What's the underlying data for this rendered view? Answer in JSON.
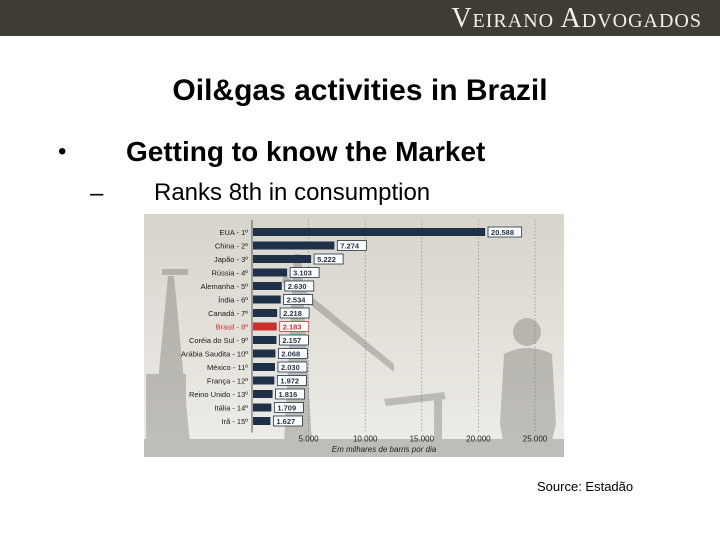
{
  "header": {
    "firm_name": "Veirano Advogados"
  },
  "slide": {
    "title": "Oil&gas activities in Brazil",
    "bullet_marker": "•",
    "bullet": "Getting to know the Market",
    "dash_marker": "–",
    "sub_bullet": "Ranks 8th in consumption",
    "source": "Source: Estadão"
  },
  "colors": {
    "bar": "#1f3148",
    "highlight": "#c8302c",
    "topbar": "#3f3c36"
  },
  "chart_data": {
    "type": "bar",
    "orientation": "horizontal",
    "categories": [
      "EUA - 1º",
      "China - 2º",
      "Japão - 3º",
      "Rússia - 4º",
      "Alemanha - 5º",
      "Índia - 6º",
      "Canadá - 7º",
      "Brasil - 8º",
      "Coréia do Sul - 9º",
      "Arábia Saudita - 10º",
      "México - 11º",
      "França - 12º",
      "Reino Unido - 13º",
      "Itália - 14º",
      "Irã - 15º"
    ],
    "values": [
      20588,
      7274,
      5222,
      3103,
      2630,
      2534,
      2218,
      2183,
      2157,
      2068,
      2030,
      1972,
      1816,
      1709,
      1627
    ],
    "value_labels": [
      "20.588",
      "7.274",
      "5.222",
      "3.103",
      "2.630",
      "2.534",
      "2.218",
      "2.183",
      "2.157",
      "2.068",
      "2.030",
      "1.972",
      "1.816",
      "1.709",
      "1.627"
    ],
    "highlight_index": 7,
    "xlim": [
      0,
      25000
    ],
    "xticks": [
      5000,
      10000,
      15000,
      20000,
      25000
    ],
    "xtick_labels": [
      "5.000",
      "10.000",
      "15.000",
      "20.000",
      "25.000"
    ],
    "xlabel": "Em milhares de barris por dia",
    "grid": true
  }
}
